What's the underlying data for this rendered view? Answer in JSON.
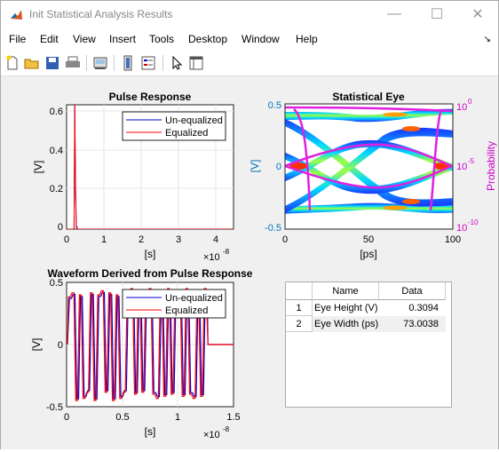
{
  "window": {
    "title": "Init Statistical Analysis Results",
    "minimize": "—",
    "maximize": "☐",
    "close": "✕"
  },
  "menu": [
    "File",
    "Edit",
    "View",
    "Insert",
    "Tools",
    "Desktop",
    "Window",
    "Help"
  ],
  "menu_dock_arrow": "↘",
  "toolbar": {
    "icons": [
      "new-figure-icon",
      "open-file-icon",
      "save-icon",
      "print-icon",
      "link-icon",
      "colorbar-icon",
      "legend-icon",
      "pointer-icon",
      "property-inspector-icon"
    ]
  },
  "colors": {
    "unequalized": "#0000cc",
    "equalized": "#ff0000",
    "left_axis": "#0072bd",
    "right_axis": "#cc00cc"
  },
  "pulse": {
    "title": "Pulse Response",
    "ylabel": "[V]",
    "xlabel": "[s]",
    "exponent": "×10",
    "exponent_power": "-8",
    "yticks": [
      "0",
      "0.2",
      "0.4",
      "0.6"
    ],
    "xticks": [
      "0",
      "1",
      "2",
      "3",
      "4"
    ],
    "legend": [
      "Un-equalized",
      "Equalized"
    ]
  },
  "eye": {
    "title": "Statistical Eye",
    "ylabel": "[V]",
    "xlabel": "[ps]",
    "right_label": "Probability",
    "yticks": [
      "0.5",
      "0",
      "-0.5"
    ],
    "xticks": [
      "0",
      "50",
      "100"
    ],
    "rticks_base": [
      "10",
      "10",
      "10"
    ],
    "rticks_exp": [
      "0",
      "-5",
      "-10"
    ]
  },
  "waveform": {
    "title": "Waveform Derived from Pulse Response",
    "ylabel": "[V]",
    "xlabel": "[s]",
    "exponent": "×10",
    "exponent_power": "-8",
    "yticks": [
      "0.5",
      "0",
      "-0.5"
    ],
    "xticks": [
      "0",
      "0.5",
      "1",
      "1.5"
    ],
    "legend": [
      "Un-equalized",
      "Equalized"
    ]
  },
  "results_table": {
    "headers": [
      "Name",
      "Data"
    ],
    "rows": [
      {
        "index": "1",
        "name": "Eye Height (V)",
        "value": "0.3094"
      },
      {
        "index": "2",
        "name": "Eye Width (ps)",
        "value": "73.0038"
      }
    ]
  },
  "chart_data": [
    {
      "type": "line",
      "title": "Pulse Response",
      "xlabel": "[s]",
      "ylabel": "[V]",
      "xlim": [
        0,
        4.5e-08
      ],
      "ylim": [
        0,
        0.62
      ],
      "series": [
        {
          "name": "Un-equalized",
          "x": [
            0,
            2e-09,
            2.2e-09,
            2.4e-09,
            2.6e-09,
            3e-09,
            4.5e-08
          ],
          "y": [
            0,
            0,
            0.62,
            0.25,
            0.02,
            0,
            0
          ]
        },
        {
          "name": "Equalized",
          "x": [
            0,
            2e-09,
            2.2e-09,
            2.4e-09,
            2.6e-09,
            3e-09,
            4.5e-08
          ],
          "y": [
            0,
            0,
            0.62,
            0.2,
            0.01,
            0,
            0
          ]
        }
      ],
      "grid": true,
      "legend": "top-right"
    },
    {
      "type": "heatmap",
      "title": "Statistical Eye",
      "xlabel": "[ps]",
      "ylabel": "[V]",
      "xlim": [
        0,
        100
      ],
      "ylim": [
        -0.55,
        0.55
      ],
      "right_axis": {
        "label": "Probability",
        "scale": "log",
        "range": [
          1e-10,
          1
        ]
      }
    },
    {
      "type": "line",
      "title": "Waveform Derived from Pulse Response",
      "xlabel": "[s]",
      "ylabel": "[V]",
      "xlim": [
        0,
        1.5e-08
      ],
      "ylim": [
        -0.5,
        0.5
      ],
      "series": [
        {
          "name": "Un-equalized"
        },
        {
          "name": "Equalized"
        }
      ],
      "grid": true,
      "legend": "top-right"
    }
  ]
}
